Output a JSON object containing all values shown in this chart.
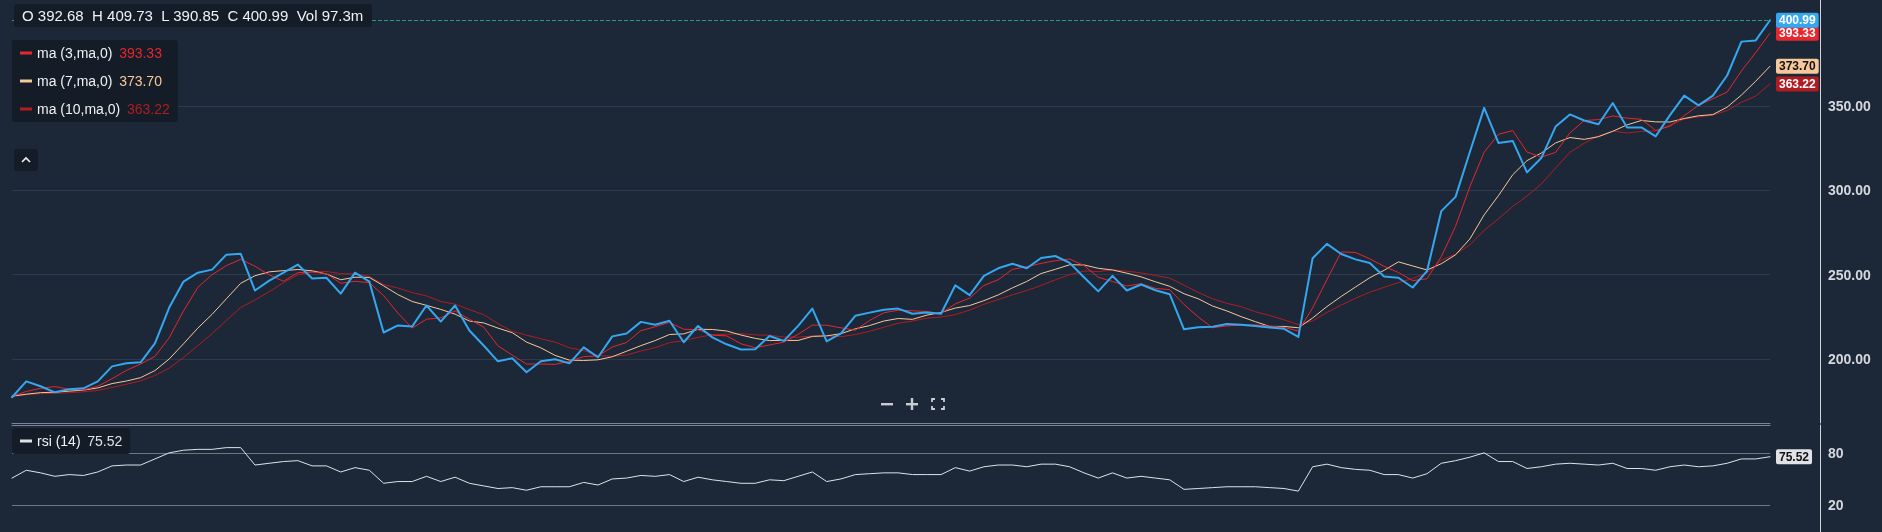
{
  "chart_data": [
    {
      "type": "line",
      "annotations": [
        "O 392.68  H 409.73  L 390.85  C 400.99  Vol 97.3m"
      ],
      "categories": [
        null,
        null,
        null,
        null,
        null,
        null,
        null,
        null,
        null,
        null,
        null,
        null,
        null,
        null,
        null,
        null,
        null,
        null,
        null,
        null,
        null,
        null,
        null,
        null,
        null,
        null,
        null,
        null,
        null,
        null,
        null,
        null,
        null,
        null,
        null,
        null,
        null,
        null,
        null,
        null,
        null,
        null,
        null,
        null,
        null,
        null,
        null,
        null,
        null,
        null,
        null,
        null,
        null,
        null,
        null,
        null,
        null,
        null,
        null,
        null,
        null,
        null,
        null,
        null,
        null,
        null,
        null,
        null,
        null,
        null,
        null,
        null,
        null,
        null,
        null,
        null,
        null,
        null,
        null,
        null,
        null,
        null,
        null,
        null,
        null,
        null,
        null,
        null,
        null,
        null,
        null,
        null,
        null,
        null,
        null,
        null,
        null,
        null,
        null,
        null,
        null,
        null,
        null,
        null,
        null,
        null,
        null,
        null,
        null,
        null,
        null,
        null,
        null,
        null,
        null,
        null,
        null,
        null,
        null,
        null,
        null,
        null,
        null,
        null
      ],
      "series": [
        {
          "color": "#35a7f0",
          "values": [
            177.3,
            186.7,
            183.8,
            180.2,
            182.0,
            182.6,
            186.7,
            195.6,
            197.4,
            198.0,
            209.2,
            230.5,
            245.9,
            251.2,
            253.0,
            261.9,
            262.5,
            240.6,
            246.5,
            251.2,
            256.0,
            247.7,
            248.2,
            238.8,
            251.2,
            245.9,
            215.7,
            219.9,
            219.3,
            231.7,
            222.2,
            231.7,
            216.9,
            208.0,
            198.6,
            200.4,
            192.1,
            198.6,
            199.8,
            197.4,
            206.9,
            201.0,
            213.4,
            215.1,
            222.0,
            220.3,
            222.7,
            209.9,
            219.6,
            212.8,
            208.7,
            205.6,
            205.8,
            213.6,
            210.7,
            219.6,
            229.9,
            210.4,
            215.2,
            225.6,
            227.5,
            229.2,
            229.9,
            226.8,
            227.5,
            226.8,
            243.7,
            237.9,
            249.3,
            253.8,
            256.5,
            253.8,
            259.9,
            261.1,
            257.0,
            248.5,
            240.1,
            249.3,
            240.6,
            244.2,
            240.8,
            238.4,
            217.6,
            218.8,
            219.1,
            220.8,
            220.3,
            219.6,
            218.7,
            217.9,
            213.1,
            259.8,
            268.3,
            262.3,
            259.1,
            256.9,
            248.9,
            248.2,
            242.4,
            252.1,
            287.7,
            296.2,
            322.8,
            349.0,
            328.2,
            329.4,
            310.7,
            319.2,
            337.9,
            345.1,
            341.5,
            339.3,
            351.9,
            337.4,
            337.4,
            332.1,
            344.7,
            356.3,
            350.5,
            356.3,
            368.2,
            388.3,
            389.0,
            400.99
          ],
          "value_labels": [
            null,
            null,
            null,
            null,
            null,
            null,
            null,
            null,
            null,
            null,
            null,
            null,
            null,
            null,
            null,
            null,
            null,
            null,
            null,
            null,
            null,
            null,
            null,
            null,
            null,
            null,
            null,
            null,
            null,
            null,
            null,
            null,
            null,
            null,
            null,
            null,
            null,
            null,
            null,
            null,
            null,
            null,
            null,
            null,
            null,
            null,
            null,
            null,
            null,
            null,
            null,
            null,
            null,
            null,
            null,
            null,
            null,
            null,
            null,
            null,
            null,
            null,
            null,
            null,
            null,
            null,
            null,
            null,
            null,
            null,
            null,
            null,
            null,
            null,
            null,
            null,
            null,
            null,
            null,
            null,
            null,
            null,
            null,
            null,
            null,
            null,
            null,
            null,
            null,
            null,
            null,
            null,
            null,
            null,
            null,
            null,
            null,
            null,
            null,
            null,
            null,
            null,
            null,
            null,
            null,
            null,
            null,
            null,
            null,
            null,
            null,
            null,
            null,
            null,
            null,
            null,
            null,
            null,
            null,
            null,
            null,
            null,
            null,
            "400.99"
          ]
        },
        {
          "name": "ma (3,ma,0)",
          "color": "#e8262e",
          "values": [
            177.8,
            180.7,
            182.6,
            183.6,
            182.0,
            181.6,
            183.8,
            188.3,
            193.2,
            197.0,
            201.5,
            212.6,
            228.5,
            242.5,
            250.0,
            255.4,
            259.1,
            255.0,
            249.9,
            246.1,
            251.2,
            251.6,
            250.6,
            244.9,
            246.1,
            245.3,
            237.6,
            227.2,
            218.3,
            223.6,
            224.4,
            228.5,
            223.6,
            218.9,
            207.8,
            202.3,
            197.0,
            197.0,
            196.8,
            198.6,
            201.4,
            201.8,
            207.1,
            209.8,
            216.8,
            219.1,
            221.7,
            217.6,
            217.4,
            214.1,
            213.7,
            209.0,
            206.7,
            208.3,
            210.0,
            214.6,
            220.1,
            220.0,
            218.5,
            217.1,
            222.8,
            227.4,
            228.9,
            228.6,
            228.1,
            227.0,
            232.7,
            236.1,
            243.6,
            247.0,
            253.2,
            254.7,
            256.7,
            258.3,
            259.3,
            255.5,
            248.5,
            246.0,
            243.3,
            244.7,
            241.9,
            241.1,
            232.3,
            224.9,
            218.5,
            219.6,
            220.1,
            220.2,
            219.5,
            218.7,
            216.6,
            230.3,
            247.1,
            263.5,
            263.2,
            259.4,
            255.0,
            251.3,
            246.5,
            247.6,
            260.7,
            278.7,
            302.2,
            322.7,
            333.3,
            335.5,
            322.8,
            319.8,
            322.6,
            334.1,
            341.5,
            342.0,
            344.2,
            342.9,
            342.2,
            335.6,
            338.1,
            344.4,
            350.5,
            354.4,
            358.3,
            370.9,
            381.8,
            393.33
          ],
          "value_labels": [
            null,
            null,
            null,
            null,
            null,
            null,
            null,
            null,
            null,
            null,
            null,
            null,
            null,
            null,
            null,
            null,
            null,
            null,
            null,
            null,
            null,
            null,
            null,
            null,
            null,
            null,
            null,
            null,
            null,
            null,
            null,
            null,
            null,
            null,
            null,
            null,
            null,
            null,
            null,
            null,
            null,
            null,
            null,
            null,
            null,
            null,
            null,
            null,
            null,
            null,
            null,
            null,
            null,
            null,
            null,
            null,
            null,
            null,
            null,
            null,
            null,
            null,
            null,
            null,
            null,
            null,
            null,
            null,
            null,
            null,
            null,
            null,
            null,
            null,
            null,
            null,
            null,
            null,
            null,
            null,
            null,
            null,
            null,
            null,
            null,
            null,
            null,
            null,
            null,
            null,
            null,
            null,
            null,
            null,
            null,
            null,
            null,
            null,
            null,
            null,
            null,
            null,
            null,
            null,
            null,
            null,
            null,
            null,
            null,
            null,
            null,
            null,
            null,
            null,
            null,
            null,
            null,
            null,
            null,
            null,
            null,
            null,
            null,
            "393.33"
          ]
        },
        {
          "name": "ma (7,ma,0)",
          "color": "#f6c89a",
          "values": [
            177.9,
            179.1,
            180.0,
            180.3,
            180.9,
            181.5,
            182.8,
            185.4,
            186.9,
            188.9,
            193.1,
            200.0,
            209.0,
            218.3,
            226.5,
            235.7,
            244.9,
            249.4,
            251.7,
            252.4,
            253.1,
            252.3,
            250.4,
            247.0,
            248.5,
            248.4,
            243.4,
            238.2,
            234.1,
            231.8,
            229.4,
            226.6,
            222.5,
            221.4,
            218.3,
            215.6,
            210.0,
            206.6,
            202.1,
            199.3,
            199.1,
            199.5,
            201.3,
            204.6,
            207.9,
            210.9,
            214.5,
            214.9,
            217.6,
            217.5,
            216.6,
            214.2,
            212.2,
            210.9,
            211.0,
            211.0,
            213.4,
            213.7,
            215.0,
            217.9,
            219.8,
            222.5,
            224.0,
            223.5,
            226.0,
            227.6,
            230.2,
            231.7,
            234.6,
            238.0,
            242.2,
            246.0,
            250.7,
            253.2,
            255.9,
            255.8,
            253.8,
            252.8,
            250.9,
            248.7,
            245.8,
            243.1,
            238.7,
            235.7,
            231.4,
            228.5,
            225.1,
            222.1,
            219.3,
            219.3,
            218.5,
            224.3,
            231.1,
            237.1,
            242.7,
            248.2,
            252.6,
            257.6,
            255.2,
            252.8,
            256.5,
            261.8,
            271.2,
            285.5,
            296.9,
            309.3,
            317.7,
            322.2,
            328.2,
            331.4,
            330.3,
            331.9,
            335.1,
            338.9,
            341.5,
            340.7,
            340.6,
            342.7,
            344.3,
            345.0,
            349.4,
            356.6,
            364.8,
            373.7
          ],
          "value_labels": [
            null,
            null,
            null,
            null,
            null,
            null,
            null,
            null,
            null,
            null,
            null,
            null,
            null,
            null,
            null,
            null,
            null,
            null,
            null,
            null,
            null,
            null,
            null,
            null,
            null,
            null,
            null,
            null,
            null,
            null,
            null,
            null,
            null,
            null,
            null,
            null,
            null,
            null,
            null,
            null,
            null,
            null,
            null,
            null,
            null,
            null,
            null,
            null,
            null,
            null,
            null,
            null,
            null,
            null,
            null,
            null,
            null,
            null,
            null,
            null,
            null,
            null,
            null,
            null,
            null,
            null,
            null,
            null,
            null,
            null,
            null,
            null,
            null,
            null,
            null,
            null,
            null,
            null,
            null,
            null,
            null,
            null,
            null,
            null,
            null,
            null,
            null,
            null,
            null,
            null,
            null,
            null,
            null,
            null,
            null,
            null,
            null,
            null,
            null,
            null,
            null,
            null,
            null,
            null,
            null,
            null,
            null,
            null,
            null,
            null,
            null,
            null,
            null,
            null,
            null,
            null,
            null,
            null,
            null,
            null,
            null,
            null,
            null,
            "373.70"
          ]
        },
        {
          "name": "ma (10,ma,0)",
          "color": "#b01c22",
          "values": [
            177.9,
            178.8,
            179.4,
            179.6,
            180.0,
            180.5,
            181.3,
            183.1,
            185.0,
            187.0,
            190.2,
            194.6,
            200.8,
            207.9,
            215.0,
            222.9,
            230.5,
            235.0,
            239.9,
            245.3,
            249.9,
            251.7,
            251.9,
            250.6,
            250.5,
            248.9,
            244.2,
            242.1,
            239.4,
            237.4,
            234.1,
            232.5,
            229.3,
            226.3,
            221.0,
            216.4,
            214.1,
            212.0,
            210.0,
            206.6,
            205.0,
            202.0,
            201.6,
            202.3,
            204.7,
            206.7,
            209.7,
            210.9,
            212.8,
            214.4,
            214.6,
            215.0,
            214.3,
            214.1,
            213.0,
            212.9,
            213.6,
            213.7,
            213.2,
            214.5,
            216.4,
            218.8,
            221.2,
            222.5,
            224.2,
            224.9,
            226.3,
            229.0,
            232.4,
            235.2,
            238.1,
            240.6,
            243.6,
            247.0,
            250.0,
            252.2,
            251.8,
            252.9,
            252.1,
            251.1,
            249.5,
            248.0,
            243.8,
            239.5,
            235.7,
            233.0,
            231.0,
            228.0,
            225.8,
            223.2,
            220.4,
            222.6,
            227.6,
            232.0,
            236.0,
            239.6,
            242.5,
            245.3,
            247.7,
            251.1,
            258.6,
            262.2,
            267.7,
            276.3,
            283.2,
            290.5,
            296.7,
            303.8,
            313.3,
            322.6,
            328.0,
            332.3,
            335.2,
            334.1,
            335.0,
            335.3,
            338.7,
            342.4,
            343.6,
            344.7,
            347.4,
            352.3,
            356.0,
            363.22
          ],
          "value_labels": [
            null,
            null,
            null,
            null,
            null,
            null,
            null,
            null,
            null,
            null,
            null,
            null,
            null,
            null,
            null,
            null,
            null,
            null,
            null,
            null,
            null,
            null,
            null,
            null,
            null,
            null,
            null,
            null,
            null,
            null,
            null,
            null,
            null,
            null,
            null,
            null,
            null,
            null,
            null,
            null,
            null,
            null,
            null,
            null,
            null,
            null,
            null,
            null,
            null,
            null,
            null,
            null,
            null,
            null,
            null,
            null,
            null,
            null,
            null,
            null,
            null,
            null,
            null,
            null,
            null,
            null,
            null,
            null,
            null,
            null,
            null,
            null,
            null,
            null,
            null,
            null,
            null,
            null,
            null,
            null,
            null,
            null,
            null,
            null,
            null,
            null,
            null,
            null,
            null,
            null,
            null,
            null,
            null,
            null,
            null,
            null,
            null,
            null,
            null,
            null,
            null,
            null,
            null,
            null,
            null,
            null,
            null,
            null,
            null,
            null,
            null,
            null,
            null,
            null,
            null,
            null,
            null,
            null,
            null,
            null,
            null,
            null,
            null,
            "363.22"
          ]
        }
      ],
      "ylim": [
        162,
        413
      ],
      "yticks": [
        {
          "value": 200,
          "label": "200.00"
        },
        {
          "value": 250,
          "label": "250.00"
        },
        {
          "value": 300,
          "label": "300.00"
        },
        {
          "value": 350,
          "label": "350.00"
        }
      ],
      "ref_lines": [
        {
          "axis": "y",
          "value": 400.99,
          "color": "#1d9e74",
          "line_style": "dashed"
        }
      ],
      "grid": "y",
      "legend": "top left",
      "tick_labels": "y"
    },
    {
      "type": "line",
      "categories": [
        null,
        null,
        null,
        null,
        null,
        null,
        null,
        null,
        null,
        null,
        null,
        null,
        null,
        null,
        null,
        null,
        null,
        null,
        null,
        null,
        null,
        null,
        null,
        null,
        null,
        null,
        null,
        null,
        null,
        null,
        null,
        null,
        null,
        null,
        null,
        null,
        null,
        null,
        null,
        null,
        null,
        null,
        null,
        null,
        null,
        null,
        null,
        null,
        null,
        null,
        null,
        null,
        null,
        null,
        null,
        null,
        null,
        null,
        null,
        null,
        null,
        null,
        null,
        null,
        null,
        null,
        null,
        null,
        null,
        null,
        null,
        null,
        null,
        null,
        null,
        null,
        null,
        null,
        null,
        null,
        null,
        null,
        null,
        null,
        null,
        null,
        null,
        null,
        null,
        null,
        null,
        null,
        null,
        null,
        null,
        null,
        null,
        null,
        null,
        null,
        null,
        null,
        null,
        null,
        null,
        null,
        null,
        null,
        null,
        null,
        null,
        null,
        null,
        null,
        null,
        null,
        null,
        null,
        null,
        null,
        null,
        null,
        null,
        null
      ],
      "series": [
        {
          "name": "rsi (14)",
          "color": "#dfe3e8",
          "values": [
            51,
            60,
            57,
            53,
            55,
            54,
            58,
            65,
            66,
            66,
            73,
            80,
            83,
            84,
            84,
            86,
            86,
            66,
            68,
            70,
            71,
            65,
            65,
            58,
            63,
            60,
            45,
            47,
            47,
            53,
            47,
            52,
            45,
            42,
            39,
            40,
            37,
            41,
            41,
            41,
            46,
            43,
            50,
            51,
            54,
            53,
            55,
            47,
            52,
            49,
            47,
            45,
            45,
            49,
            48,
            53,
            58,
            47,
            50,
            55,
            56,
            57,
            57,
            55,
            55,
            55,
            63,
            59,
            64,
            66,
            66,
            64,
            67,
            67,
            64,
            57,
            51,
            57,
            51,
            53,
            51,
            49,
            38,
            39,
            40,
            41,
            41,
            41,
            40,
            39,
            36,
            64,
            67,
            63,
            61,
            60,
            55,
            55,
            51,
            56,
            68,
            71,
            75,
            80,
            70,
            70,
            62,
            64,
            67,
            68,
            67,
            66,
            68,
            62,
            62,
            60,
            64,
            66,
            64,
            65,
            68,
            73,
            73,
            75.52
          ],
          "value_labels": [
            null,
            null,
            null,
            null,
            null,
            null,
            null,
            null,
            null,
            null,
            null,
            null,
            null,
            null,
            null,
            null,
            null,
            null,
            null,
            null,
            null,
            null,
            null,
            null,
            null,
            null,
            null,
            null,
            null,
            null,
            null,
            null,
            null,
            null,
            null,
            null,
            null,
            null,
            null,
            null,
            null,
            null,
            null,
            null,
            null,
            null,
            null,
            null,
            null,
            null,
            null,
            null,
            null,
            null,
            null,
            null,
            null,
            null,
            null,
            null,
            null,
            null,
            null,
            null,
            null,
            null,
            null,
            null,
            null,
            null,
            null,
            null,
            null,
            null,
            null,
            null,
            null,
            null,
            null,
            null,
            null,
            null,
            null,
            null,
            null,
            null,
            null,
            null,
            null,
            null,
            null,
            null,
            null,
            null,
            null,
            null,
            null,
            null,
            null,
            null,
            null,
            null,
            null,
            null,
            null,
            null,
            null,
            null,
            null,
            null,
            null,
            null,
            null,
            null,
            null,
            null,
            null,
            null,
            null,
            null,
            null,
            null,
            null,
            "75.52"
          ]
        }
      ],
      "ylim": [
        -11,
        112
      ],
      "yticks": [
        20,
        80
      ],
      "grid": "y",
      "legend": "top left",
      "tick_labels": "y"
    }
  ]
}
